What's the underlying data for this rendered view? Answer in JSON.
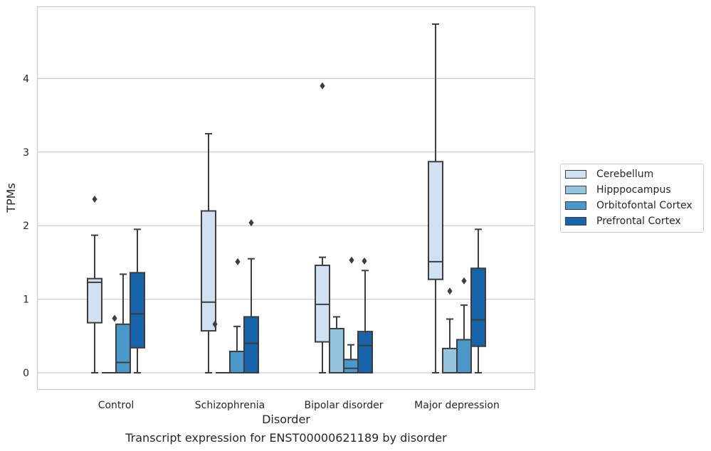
{
  "chart_data": {
    "type": "box",
    "title": "Transcript expression for ENST00000621189 by disorder",
    "xlabel": "Disorder",
    "ylabel": "TPMs",
    "ylim": [
      -0.23,
      4.98
    ],
    "yticks": [
      0,
      1,
      2,
      3,
      4
    ],
    "categories": [
      "Control",
      "Schizophrenia",
      "Bipolar disorder",
      "Major depression"
    ],
    "grid": "horizontal",
    "legend_position": "right",
    "series": [
      {
        "name": "Cerebellum",
        "color": "#d0e1f2",
        "boxes": [
          {
            "whisker_low": 0,
            "q1": 0.68,
            "median": 1.23,
            "q3": 1.28,
            "whisker_high": 1.87,
            "outliers": [
              2.36
            ]
          },
          {
            "whisker_low": 0,
            "q1": 0.57,
            "median": 0.96,
            "q3": 2.2,
            "whisker_high": 3.25,
            "outliers": []
          },
          {
            "whisker_low": 0,
            "q1": 0.42,
            "median": 0.93,
            "q3": 1.46,
            "whisker_high": 1.57,
            "outliers": [
              3.9
            ]
          },
          {
            "whisker_low": 0,
            "q1": 1.27,
            "median": 1.51,
            "q3": 2.87,
            "whisker_high": 4.74,
            "outliers": []
          }
        ]
      },
      {
        "name": "Hipppocampus",
        "color": "#94c4df",
        "boxes": [
          {
            "whisker_low": 0,
            "q1": 0,
            "median": 0,
            "q3": 0,
            "whisker_high": 0,
            "outliers": []
          },
          {
            "whisker_low": 0,
            "q1": 0,
            "median": 0,
            "q3": 0,
            "whisker_high": 0,
            "outliers": []
          },
          {
            "whisker_low": 0,
            "q1": 0,
            "median": 0,
            "q3": 0.6,
            "whisker_high": 0.76,
            "outliers": []
          },
          {
            "whisker_low": 0,
            "q1": 0,
            "median": 0,
            "q3": 0.33,
            "whisker_high": 0.73,
            "outliers": [
              1.11
            ]
          }
        ]
      },
      {
        "name": "Orbitofontal Cortex",
        "color": "#4a98c9",
        "boxes": [
          {
            "whisker_low": 0,
            "q1": 0,
            "median": 0.14,
            "q3": 0.66,
            "whisker_high": 1.34,
            "outliers": []
          },
          {
            "whisker_low": 0,
            "q1": 0,
            "median": 0,
            "q3": 0.29,
            "whisker_high": 0.63,
            "outliers": []
          },
          {
            "whisker_low": 0,
            "q1": 0,
            "median": 0.06,
            "q3": 0.18,
            "whisker_high": 0.38,
            "outliers": []
          },
          {
            "whisker_low": 0,
            "q1": 0,
            "median": 0,
            "q3": 0.45,
            "whisker_high": 0.92,
            "outliers": [
              1.25
            ]
          }
        ]
      },
      {
        "name": "Prefrontal Cortex",
        "color": "#1764ab",
        "boxes": [
          {
            "whisker_low": 0,
            "q1": 0.34,
            "median": 0.8,
            "q3": 1.36,
            "whisker_high": 1.95,
            "outliers": []
          },
          {
            "whisker_low": 0,
            "q1": 0,
            "median": 0.4,
            "q3": 0.76,
            "whisker_high": 1.55,
            "outliers": [
              2.04
            ]
          },
          {
            "whisker_low": 0,
            "q1": 0,
            "median": 0.37,
            "q3": 0.56,
            "whisker_high": 1.39,
            "outliers": []
          },
          {
            "whisker_low": 0,
            "q1": 0.36,
            "median": 0.72,
            "q3": 1.42,
            "whisker_high": 1.95,
            "outliers": []
          }
        ]
      }
    ],
    "extra_outliers": [
      {
        "category": "Control",
        "between": "Hipppocampus/Orbitofontal Cortex",
        "value": 0.74
      },
      {
        "category": "Schizophrenia",
        "between": "Cerebellum/Hipppocampus",
        "value": 0.66
      },
      {
        "category": "Schizophrenia",
        "between": "Orbitofontal Cortex",
        "value": 1.51
      },
      {
        "category": "Bipolar disorder",
        "between": "Orbitofontal Cortex",
        "value": 1.53
      },
      {
        "category": "Bipolar disorder",
        "between": "Prefrontal Cortex",
        "value": 1.52
      }
    ]
  }
}
